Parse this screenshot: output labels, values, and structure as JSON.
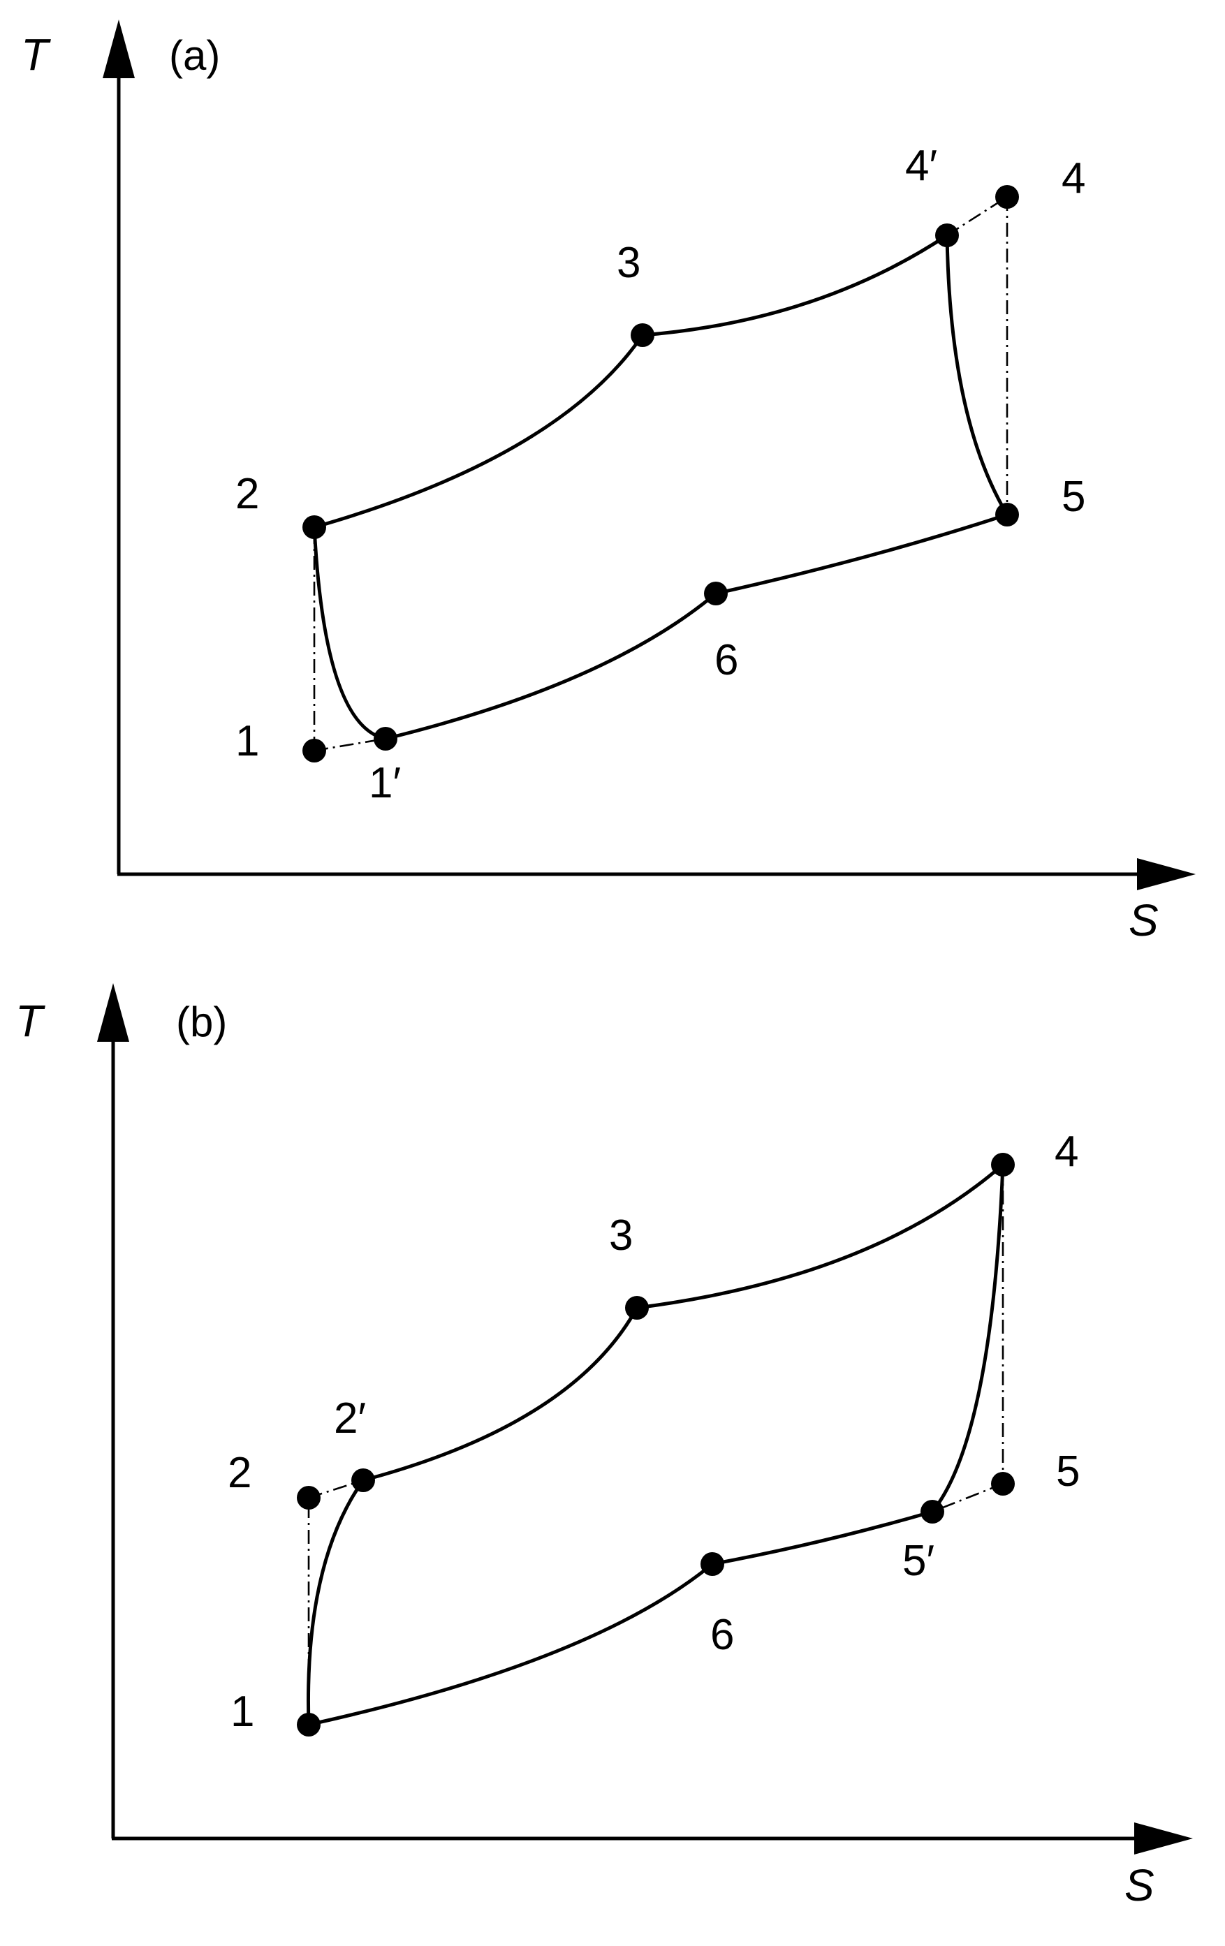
{
  "panels": [
    {
      "label": "(a)",
      "y_axis_label": "T",
      "x_axis_label": "S",
      "states": [
        "1",
        "1′",
        "2",
        "3",
        "4′",
        "4",
        "5",
        "6"
      ]
    },
    {
      "label": "(b)",
      "y_axis_label": "T",
      "x_axis_label": "S",
      "states": [
        "1",
        "2",
        "2′",
        "3",
        "4",
        "5",
        "5′",
        "6"
      ]
    }
  ]
}
